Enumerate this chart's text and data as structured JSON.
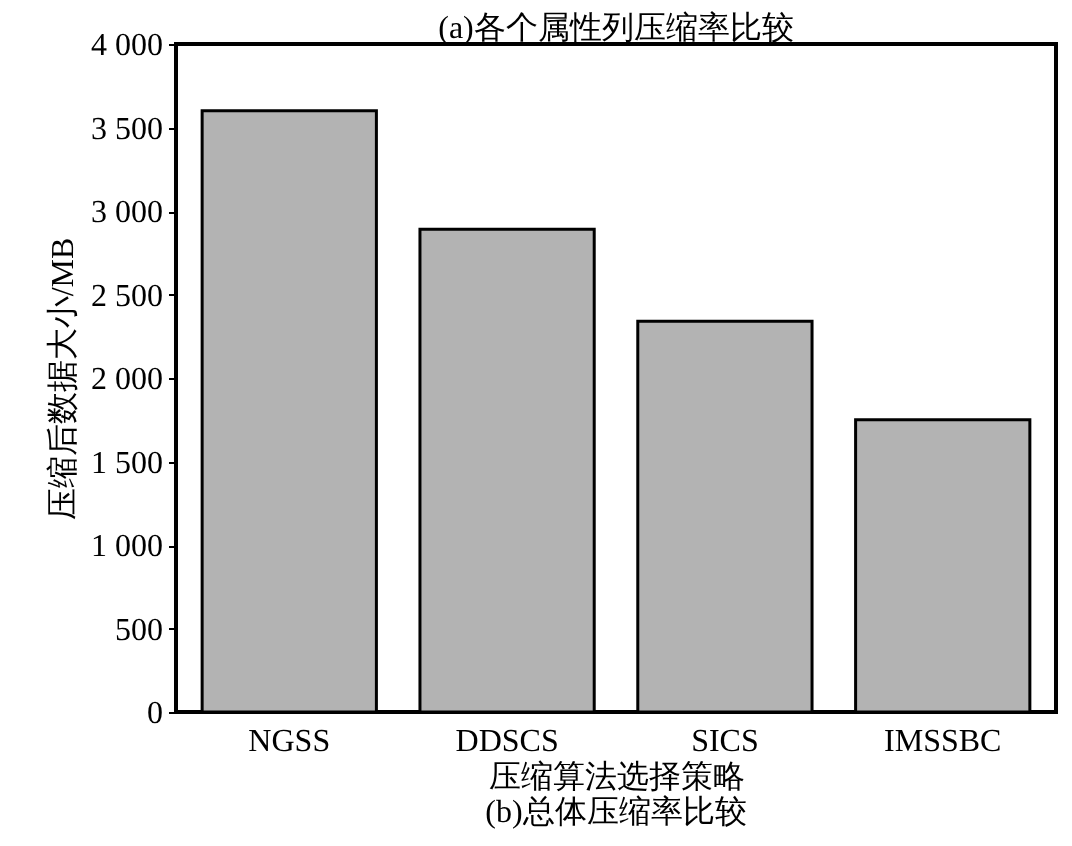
{
  "chart_data": {
    "type": "bar",
    "title": "(b)总体压缩率比较",
    "xlabel": "压缩算法选择策略",
    "ylabel": "压缩后数据大小/MB",
    "annotations": [
      "(a)各个属性列压缩率比较"
    ],
    "categories": [
      "NGSS",
      "DDSCS",
      "SICS",
      "IMSSBC"
    ],
    "values": [
      3600,
      2890,
      2340,
      1750
    ],
    "color": "#b3b3b3",
    "ylim": [
      0,
      4000
    ],
    "yticks": [
      0,
      500,
      {
        "value": 1000,
        "label": "1 000"
      },
      {
        "value": 1500,
        "label": "1 500"
      },
      {
        "value": 2000,
        "label": "2 000"
      },
      {
        "value": 2500,
        "label": "2 500"
      },
      {
        "value": 3000,
        "label": "3 000"
      },
      {
        "value": 3500,
        "label": "3 500"
      },
      {
        "value": 4000,
        "label": "4 000"
      }
    ],
    "grid": false
  }
}
